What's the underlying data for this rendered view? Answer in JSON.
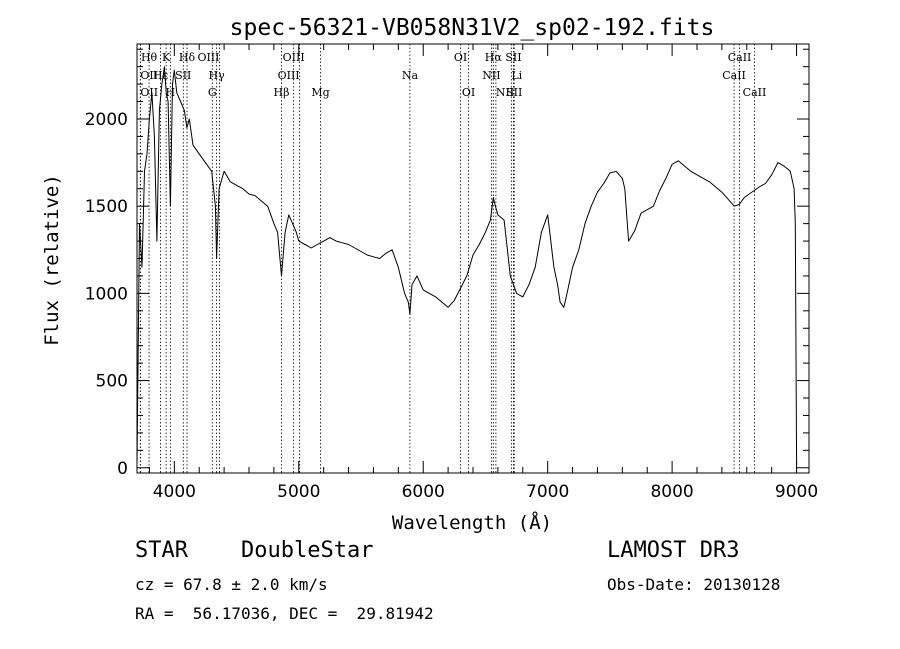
{
  "chart_data": {
    "type": "line",
    "title": "spec-56321-VB058N31V2_sp02-192.fits",
    "xlabel": "Wavelength (Å)",
    "ylabel": "Flux (relative)",
    "xlim": [
      3700,
      9100
    ],
    "ylim": [
      -30,
      2430
    ],
    "x_ticks": [
      4000,
      5000,
      6000,
      7000,
      8000,
      9000
    ],
    "x_tick_labels": [
      "4000",
      "5000",
      "6000",
      "7000",
      "8000",
      "9000"
    ],
    "y_ticks": [
      0,
      500,
      1000,
      1500,
      2000
    ],
    "y_tick_labels": [
      "0",
      "500",
      "1000",
      "1500",
      "2000"
    ],
    "grid": false,
    "series": [
      {
        "name": "flux",
        "x": [
          3700,
          3720,
          3740,
          3760,
          3780,
          3800,
          3820,
          3840,
          3860,
          3880,
          3900,
          3920,
          3935,
          3950,
          3968,
          3985,
          4000,
          4020,
          4050,
          4080,
          4101,
          4120,
          4150,
          4200,
          4250,
          4300,
          4330,
          4340,
          4360,
          4380,
          4400,
          4450,
          4500,
          4550,
          4600,
          4650,
          4700,
          4750,
          4800,
          4830,
          4861,
          4890,
          4920,
          4950,
          4980,
          5000,
          5050,
          5100,
          5150,
          5200,
          5250,
          5300,
          5350,
          5400,
          5450,
          5500,
          5550,
          5600,
          5650,
          5700,
          5750,
          5800,
          5850,
          5880,
          5893,
          5910,
          5950,
          6000,
          6050,
          6100,
          6150,
          6200,
          6250,
          6300,
          6350,
          6400,
          6450,
          6500,
          6540,
          6563,
          6580,
          6600,
          6650,
          6700,
          6750,
          6800,
          6850,
          6900,
          6950,
          7000,
          7050,
          7080,
          7100,
          7130,
          7150,
          7200,
          7250,
          7300,
          7350,
          7400,
          7450,
          7500,
          7550,
          7600,
          7620,
          7650,
          7700,
          7750,
          7800,
          7850,
          7900,
          7950,
          8000,
          8050,
          8100,
          8150,
          8200,
          8250,
          8300,
          8350,
          8400,
          8450,
          8500,
          8540,
          8580,
          8620,
          8660,
          8700,
          8750,
          8800,
          8850,
          8900,
          8950,
          8980,
          8990,
          9000
        ],
        "y": [
          20,
          1400,
          1150,
          1700,
          1800,
          2000,
          2150,
          1900,
          1300,
          2050,
          2200,
          2300,
          2150,
          2100,
          1500,
          2200,
          2280,
          2150,
          2100,
          2050,
          1950,
          2000,
          1850,
          1800,
          1750,
          1700,
          1500,
          1200,
          1600,
          1650,
          1700,
          1640,
          1620,
          1600,
          1570,
          1560,
          1530,
          1500,
          1400,
          1350,
          1100,
          1350,
          1450,
          1400,
          1350,
          1300,
          1280,
          1260,
          1280,
          1300,
          1320,
          1300,
          1290,
          1280,
          1260,
          1240,
          1220,
          1210,
          1200,
          1230,
          1250,
          1150,
          1000,
          950,
          880,
          1050,
          1100,
          1020,
          1000,
          980,
          950,
          920,
          960,
          1030,
          1100,
          1220,
          1280,
          1350,
          1420,
          1550,
          1500,
          1450,
          1420,
          1100,
          1000,
          980,
          1050,
          1150,
          1350,
          1450,
          1150,
          1050,
          950,
          920,
          980,
          1150,
          1250,
          1400,
          1500,
          1580,
          1630,
          1690,
          1700,
          1660,
          1600,
          1300,
          1360,
          1460,
          1480,
          1500,
          1590,
          1660,
          1740,
          1760,
          1730,
          1700,
          1680,
          1660,
          1640,
          1610,
          1580,
          1540,
          1500,
          1510,
          1550,
          1570,
          1590,
          1610,
          1630,
          1680,
          1750,
          1730,
          1700,
          1600,
          1400,
          20
        ]
      }
    ],
    "line_markers": [
      {
        "label": "Hθ",
        "x": 3797,
        "row": 0,
        "anchor": "middle"
      },
      {
        "label": "K",
        "x": 3934,
        "row": 0,
        "anchor": "middle"
      },
      {
        "label": "Hδ",
        "x": 4102,
        "row": 0,
        "anchor": "middle"
      },
      {
        "label": "OIII",
        "x": 4363,
        "row": 0,
        "anchor": "end"
      },
      {
        "label": "OIII",
        "x": 4959,
        "row": 0,
        "anchor": "middle"
      },
      {
        "label": "OI",
        "x": 6300,
        "row": 0,
        "anchor": "middle"
      },
      {
        "label": "Hα",
        "x": 6563,
        "row": 0,
        "anchor": "middle"
      },
      {
        "label": "SII",
        "x": 6725,
        "row": 0,
        "anchor": "middle"
      },
      {
        "label": "CaII",
        "x": 8542,
        "row": 0,
        "anchor": "middle"
      },
      {
        "label": "OII",
        "x": 3727,
        "row": 1,
        "anchor": "start"
      },
      {
        "label": "Hε",
        "x": 3889,
        "row": 1,
        "anchor": "middle"
      },
      {
        "label": "SII",
        "x": 4072,
        "row": 1,
        "anchor": "middle"
      },
      {
        "label": "Hγ",
        "x": 4340,
        "row": 1,
        "anchor": "middle"
      },
      {
        "label": "OIII",
        "x": 5007,
        "row": 1,
        "anchor": "end"
      },
      {
        "label": "Na",
        "x": 5893,
        "row": 1,
        "anchor": "middle"
      },
      {
        "label": "NII",
        "x": 6548,
        "row": 1,
        "anchor": "middle"
      },
      {
        "label": "Li",
        "x": 6708,
        "row": 1,
        "anchor": "start"
      },
      {
        "label": "CaII",
        "x": 8498,
        "row": 1,
        "anchor": "middle"
      },
      {
        "label": "OII",
        "x": 3727,
        "row": 2,
        "anchor": "start"
      },
      {
        "label": "H",
        "x": 3968,
        "row": 2,
        "anchor": "middle"
      },
      {
        "label": "G",
        "x": 4305,
        "row": 2,
        "anchor": "middle"
      },
      {
        "label": "Hβ",
        "x": 4861,
        "row": 2,
        "anchor": "middle"
      },
      {
        "label": "Mg",
        "x": 5175,
        "row": 2,
        "anchor": "middle"
      },
      {
        "label": "OI",
        "x": 6364,
        "row": 2,
        "anchor": "middle"
      },
      {
        "label": "NII",
        "x": 6584,
        "row": 2,
        "anchor": "start"
      },
      {
        "label": "SII",
        "x": 6731,
        "row": 2,
        "anchor": "middle"
      },
      {
        "label": "CaII",
        "x": 8662,
        "row": 2,
        "anchor": "middle"
      }
    ]
  },
  "info": {
    "class_label": "STAR",
    "subclass_label": "DoubleStar",
    "survey_label": "LAMOST DR3",
    "cz_text": "cz = 67.8 ± 2.0 km/s",
    "obs_date_text": "Obs-Date: 20130128",
    "radec_text": "RA =  56.17036, DEC =  29.81942"
  }
}
